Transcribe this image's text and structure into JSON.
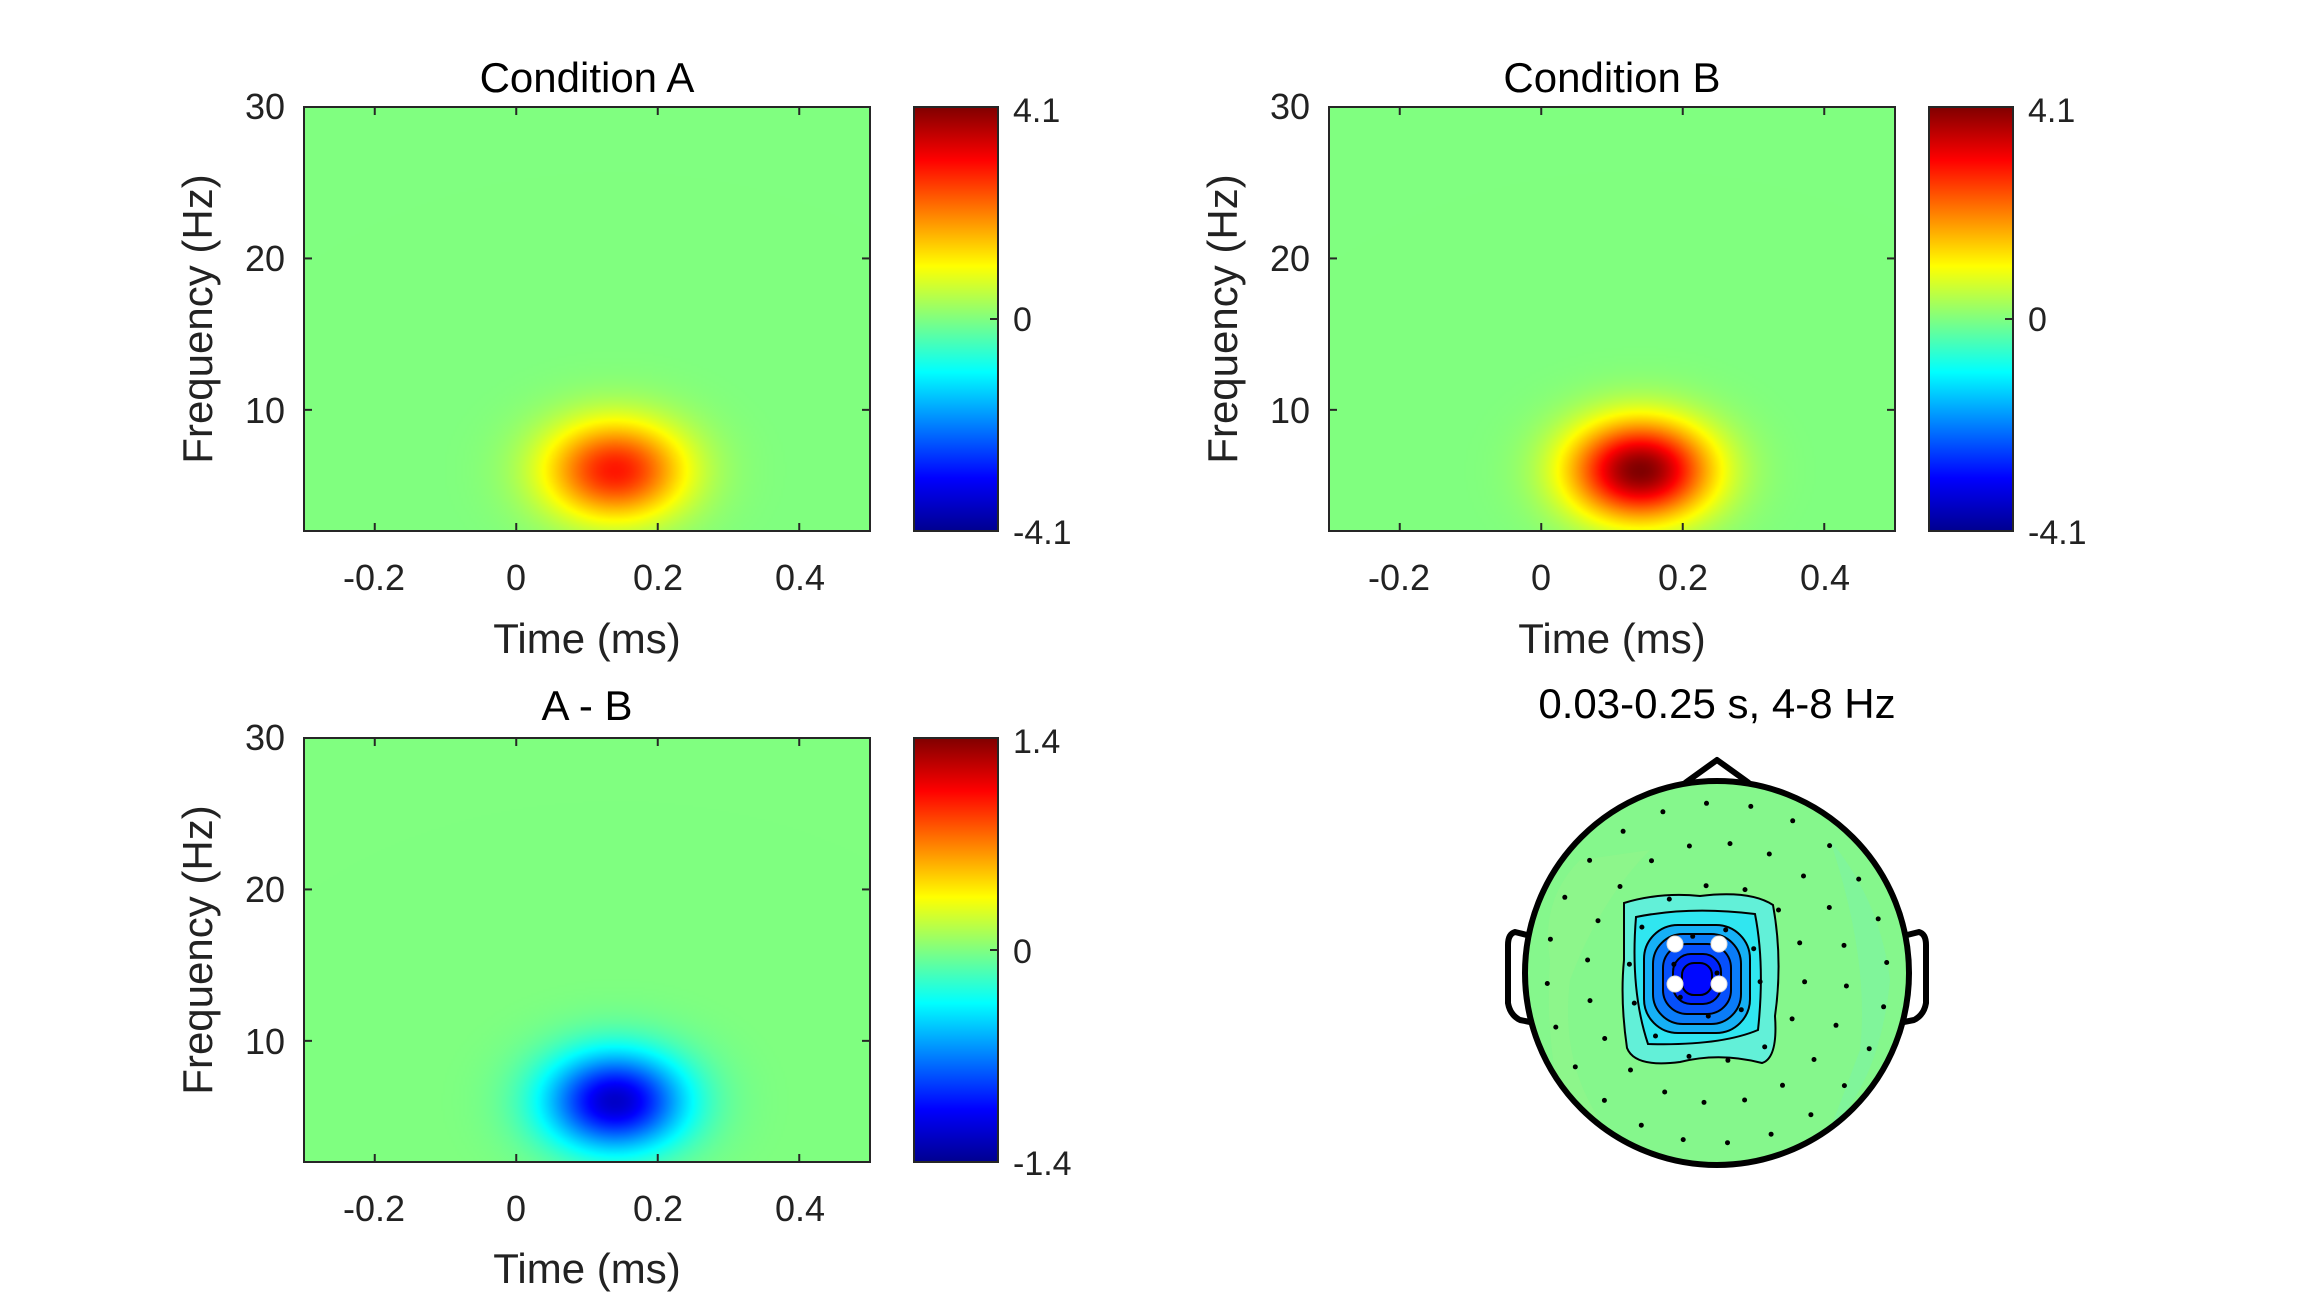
{
  "colors": {
    "background": "#ffffff",
    "axis": "#262626",
    "colormap": "jet",
    "head_outline": "#000000"
  },
  "chart_data": [
    {
      "type": "heatmap",
      "title": "Condition A",
      "xlabel": "Time (ms)",
      "ylabel": "Frequency (Hz)",
      "xlim": [
        -0.3,
        0.5
      ],
      "ylim": [
        2,
        30
      ],
      "xticks": [
        "-0.2",
        "0",
        "0.2",
        "0.4"
      ],
      "yticks": [
        "10",
        "20",
        "30"
      ],
      "clim": [
        -4.1,
        4.1
      ],
      "colorbar_ticks": [
        "4.1",
        "0",
        "-4.1"
      ],
      "blob": {
        "t_center": 0.14,
        "f_center": 6,
        "t_width": 0.07,
        "f_width": 2.3,
        "peak": 2.9
      }
    },
    {
      "type": "heatmap",
      "title": "Condition B",
      "xlabel": "Time (ms)",
      "ylabel": "Frequency (Hz)",
      "xlim": [
        -0.3,
        0.5
      ],
      "ylim": [
        2,
        30
      ],
      "xticks": [
        "-0.2",
        "0",
        "0.2",
        "0.4"
      ],
      "yticks": [
        "10",
        "20",
        "30"
      ],
      "clim": [
        -4.1,
        4.1
      ],
      "colorbar_ticks": [
        "4.1",
        "0",
        "-4.1"
      ],
      "blob": {
        "t_center": 0.14,
        "f_center": 6,
        "t_width": 0.07,
        "f_width": 2.3,
        "peak": 4.1
      }
    },
    {
      "type": "heatmap",
      "title": "A - B",
      "xlabel": "Time (ms)",
      "ylabel": "Frequency (Hz)",
      "xlim": [
        -0.3,
        0.5
      ],
      "ylim": [
        2,
        30
      ],
      "xticks": [
        "-0.2",
        "0",
        "0.2",
        "0.4"
      ],
      "yticks": [
        "10",
        "20",
        "30"
      ],
      "clim": [
        -1.4,
        1.4
      ],
      "colorbar_ticks": [
        "1.4",
        "0",
        "-1.4"
      ],
      "blob": {
        "t_center": 0.14,
        "f_center": 6,
        "t_width": 0.07,
        "f_width": 2.3,
        "peak": -1.2
      }
    },
    {
      "type": "topoplot",
      "title": "0.03-0.25 s, 4-8 Hz",
      "highlighted_channels": 4,
      "center_value": "min"
    }
  ]
}
